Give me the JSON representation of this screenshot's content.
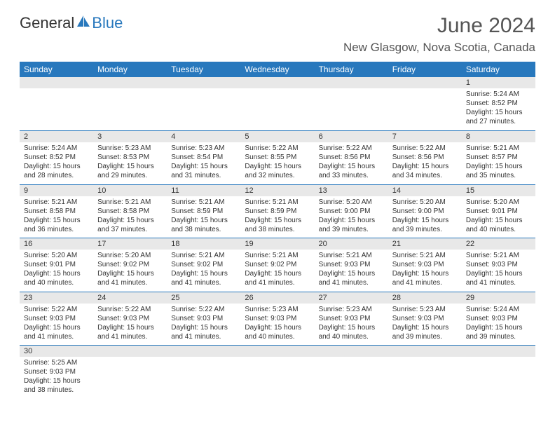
{
  "logo": {
    "part1": "General",
    "part2": "Blue"
  },
  "title": "June 2024",
  "location": "New Glasgow, Nova Scotia, Canada",
  "weekdays": [
    "Sunday",
    "Monday",
    "Tuesday",
    "Wednesday",
    "Thursday",
    "Friday",
    "Saturday"
  ],
  "colors": {
    "accent": "#2878bd",
    "header_bg": "#e8e8e8",
    "text": "#333333"
  },
  "weeks": [
    [
      null,
      null,
      null,
      null,
      null,
      null,
      {
        "n": "1",
        "sr": "5:24 AM",
        "ss": "8:52 PM",
        "dl": "15 hours and 27 minutes."
      }
    ],
    [
      {
        "n": "2",
        "sr": "5:24 AM",
        "ss": "8:52 PM",
        "dl": "15 hours and 28 minutes."
      },
      {
        "n": "3",
        "sr": "5:23 AM",
        "ss": "8:53 PM",
        "dl": "15 hours and 29 minutes."
      },
      {
        "n": "4",
        "sr": "5:23 AM",
        "ss": "8:54 PM",
        "dl": "15 hours and 31 minutes."
      },
      {
        "n": "5",
        "sr": "5:22 AM",
        "ss": "8:55 PM",
        "dl": "15 hours and 32 minutes."
      },
      {
        "n": "6",
        "sr": "5:22 AM",
        "ss": "8:56 PM",
        "dl": "15 hours and 33 minutes."
      },
      {
        "n": "7",
        "sr": "5:22 AM",
        "ss": "8:56 PM",
        "dl": "15 hours and 34 minutes."
      },
      {
        "n": "8",
        "sr": "5:21 AM",
        "ss": "8:57 PM",
        "dl": "15 hours and 35 minutes."
      }
    ],
    [
      {
        "n": "9",
        "sr": "5:21 AM",
        "ss": "8:58 PM",
        "dl": "15 hours and 36 minutes."
      },
      {
        "n": "10",
        "sr": "5:21 AM",
        "ss": "8:58 PM",
        "dl": "15 hours and 37 minutes."
      },
      {
        "n": "11",
        "sr": "5:21 AM",
        "ss": "8:59 PM",
        "dl": "15 hours and 38 minutes."
      },
      {
        "n": "12",
        "sr": "5:21 AM",
        "ss": "8:59 PM",
        "dl": "15 hours and 38 minutes."
      },
      {
        "n": "13",
        "sr": "5:20 AM",
        "ss": "9:00 PM",
        "dl": "15 hours and 39 minutes."
      },
      {
        "n": "14",
        "sr": "5:20 AM",
        "ss": "9:00 PM",
        "dl": "15 hours and 39 minutes."
      },
      {
        "n": "15",
        "sr": "5:20 AM",
        "ss": "9:01 PM",
        "dl": "15 hours and 40 minutes."
      }
    ],
    [
      {
        "n": "16",
        "sr": "5:20 AM",
        "ss": "9:01 PM",
        "dl": "15 hours and 40 minutes."
      },
      {
        "n": "17",
        "sr": "5:20 AM",
        "ss": "9:02 PM",
        "dl": "15 hours and 41 minutes."
      },
      {
        "n": "18",
        "sr": "5:21 AM",
        "ss": "9:02 PM",
        "dl": "15 hours and 41 minutes."
      },
      {
        "n": "19",
        "sr": "5:21 AM",
        "ss": "9:02 PM",
        "dl": "15 hours and 41 minutes."
      },
      {
        "n": "20",
        "sr": "5:21 AM",
        "ss": "9:03 PM",
        "dl": "15 hours and 41 minutes."
      },
      {
        "n": "21",
        "sr": "5:21 AM",
        "ss": "9:03 PM",
        "dl": "15 hours and 41 minutes."
      },
      {
        "n": "22",
        "sr": "5:21 AM",
        "ss": "9:03 PM",
        "dl": "15 hours and 41 minutes."
      }
    ],
    [
      {
        "n": "23",
        "sr": "5:22 AM",
        "ss": "9:03 PM",
        "dl": "15 hours and 41 minutes."
      },
      {
        "n": "24",
        "sr": "5:22 AM",
        "ss": "9:03 PM",
        "dl": "15 hours and 41 minutes."
      },
      {
        "n": "25",
        "sr": "5:22 AM",
        "ss": "9:03 PM",
        "dl": "15 hours and 41 minutes."
      },
      {
        "n": "26",
        "sr": "5:23 AM",
        "ss": "9:03 PM",
        "dl": "15 hours and 40 minutes."
      },
      {
        "n": "27",
        "sr": "5:23 AM",
        "ss": "9:03 PM",
        "dl": "15 hours and 40 minutes."
      },
      {
        "n": "28",
        "sr": "5:23 AM",
        "ss": "9:03 PM",
        "dl": "15 hours and 39 minutes."
      },
      {
        "n": "29",
        "sr": "5:24 AM",
        "ss": "9:03 PM",
        "dl": "15 hours and 39 minutes."
      }
    ],
    [
      {
        "n": "30",
        "sr": "5:25 AM",
        "ss": "9:03 PM",
        "dl": "15 hours and 38 minutes."
      },
      null,
      null,
      null,
      null,
      null,
      null
    ]
  ],
  "labels": {
    "sunrise": "Sunrise:",
    "sunset": "Sunset:",
    "daylight": "Daylight:"
  }
}
